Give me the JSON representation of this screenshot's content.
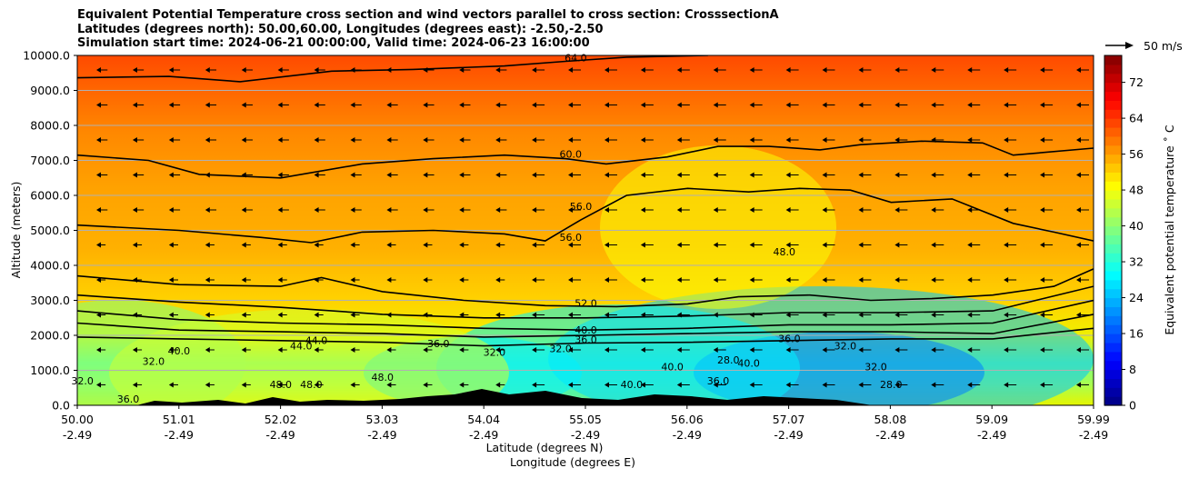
{
  "chart_data": {
    "type": "contour",
    "title_lines": [
      "Equivalent Potential Temperature cross section and wind vectors parallel to cross section: CrosssectionA",
      "Latitudes (degrees north): 50.00,60.00, Longitudes (degrees east): -2.50,-2.50",
      "Simulation start time: 2024-06-21 00:00:00, Valid time: 2024-06-23 16:00:00"
    ],
    "ylabel": "Altitude (meters)",
    "xlabel_lat": "Latitude (degrees N)",
    "xlabel_lon": "Longitude (degrees E)",
    "ylim": [
      0,
      10000
    ],
    "xlim": [
      50.0,
      59.99
    ],
    "y_ticks": [
      "0.0",
      "1000.0",
      "2000.0",
      "3000.0",
      "4000.0",
      "5000.0",
      "6000.0",
      "7000.0",
      "8000.0",
      "9000.0",
      "10000.0"
    ],
    "y_tick_values": [
      0,
      1000,
      2000,
      3000,
      4000,
      5000,
      6000,
      7000,
      8000,
      9000,
      10000
    ],
    "x_ticks": [
      {
        "lat": "50.00",
        "lon": "-2.49"
      },
      {
        "lat": "51.01",
        "lon": "-2.49"
      },
      {
        "lat": "52.02",
        "lon": "-2.49"
      },
      {
        "lat": "53.03",
        "lon": "-2.49"
      },
      {
        "lat": "54.04",
        "lon": "-2.49"
      },
      {
        "lat": "55.05",
        "lon": "-2.49"
      },
      {
        "lat": "56.06",
        "lon": "-2.49"
      },
      {
        "lat": "57.07",
        "lon": "-2.49"
      },
      {
        "lat": "58.08",
        "lon": "-2.49"
      },
      {
        "lat": "59.09",
        "lon": "-2.49"
      },
      {
        "lat": "59.99",
        "lon": "-2.49"
      }
    ],
    "colorbar": {
      "label": "Equivalent potential temperature ˚ C",
      "ticks": [
        "0",
        "8",
        "16",
        "24",
        "32",
        "40",
        "48",
        "56",
        "64",
        "72"
      ],
      "tick_values": [
        0,
        8,
        16,
        24,
        32,
        40,
        48,
        56,
        64,
        72
      ],
      "range": [
        0,
        78
      ],
      "colormap": "jet"
    },
    "quiver_key": "50 m/s",
    "contour_labels": [
      {
        "text": "64.0",
        "lat": 54.9,
        "z": 9830
      },
      {
        "text": "60.0",
        "lat": 54.85,
        "z": 7080
      },
      {
        "text": "56.0",
        "lat": 54.95,
        "z": 5580
      },
      {
        "text": "56.0",
        "lat": 54.85,
        "z": 4700
      },
      {
        "text": "52.0",
        "lat": 55.0,
        "z": 2820
      },
      {
        "text": "48.0",
        "lat": 56.95,
        "z": 4280
      },
      {
        "text": "40.0",
        "lat": 55.0,
        "z": 2050
      },
      {
        "text": "36.0",
        "lat": 55.0,
        "z": 1780
      },
      {
        "text": "32.0",
        "lat": 54.1,
        "z": 1420
      },
      {
        "text": "32.0",
        "lat": 54.75,
        "z": 1520
      },
      {
        "text": "44.0",
        "lat": 52.2,
        "z": 1600
      },
      {
        "text": "44.0",
        "lat": 52.35,
        "z": 1750
      },
      {
        "text": "48.0",
        "lat": 53.0,
        "z": 700
      },
      {
        "text": "48.0",
        "lat": 52.3,
        "z": 500
      },
      {
        "text": "48.0",
        "lat": 52.0,
        "z": 500
      },
      {
        "text": "40.0",
        "lat": 51.0,
        "z": 1450
      },
      {
        "text": "32.0",
        "lat": 50.75,
        "z": 1150
      },
      {
        "text": "32.0",
        "lat": 50.05,
        "z": 600
      },
      {
        "text": "36.0",
        "lat": 50.5,
        "z": 80
      },
      {
        "text": "36.0",
        "lat": 53.55,
        "z": 1660
      },
      {
        "text": "40.0",
        "lat": 55.45,
        "z": 500
      },
      {
        "text": "40.0",
        "lat": 55.85,
        "z": 1000
      },
      {
        "text": "36.0",
        "lat": 57.0,
        "z": 1800
      },
      {
        "text": "32.0",
        "lat": 57.55,
        "z": 1600
      },
      {
        "text": "32.0",
        "lat": 57.85,
        "z": 1000
      },
      {
        "text": "28.0",
        "lat": 58.0,
        "z": 500
      },
      {
        "text": "28.0",
        "lat": 56.4,
        "z": 1200
      },
      {
        "text": "36.0",
        "lat": 56.3,
        "z": 600
      },
      {
        "text": "40.0",
        "lat": 56.6,
        "z": 1100
      }
    ],
    "contour_lines": [
      {
        "level": 64,
        "points": [
          [
            50.0,
            9360
          ],
          [
            50.9,
            9400
          ],
          [
            51.6,
            9250
          ],
          [
            52.5,
            9550
          ],
          [
            53.3,
            9600
          ],
          [
            54.2,
            9700
          ],
          [
            54.8,
            9830
          ],
          [
            55.4,
            9950
          ],
          [
            56.2,
            10000
          ]
        ]
      },
      {
        "level": 60,
        "points": [
          [
            50.0,
            7150
          ],
          [
            50.7,
            7000
          ],
          [
            51.2,
            6600
          ],
          [
            52.0,
            6500
          ],
          [
            52.8,
            6900
          ],
          [
            53.5,
            7050
          ],
          [
            54.2,
            7150
          ],
          [
            54.8,
            7050
          ],
          [
            55.2,
            6900
          ],
          [
            55.8,
            7100
          ],
          [
            56.3,
            7400
          ],
          [
            56.8,
            7400
          ],
          [
            57.3,
            7300
          ],
          [
            57.7,
            7450
          ],
          [
            58.3,
            7550
          ],
          [
            58.9,
            7500
          ],
          [
            59.2,
            7150
          ],
          [
            59.99,
            7350
          ]
        ]
      },
      {
        "level": 56,
        "points": [
          [
            50.0,
            5150
          ],
          [
            51.0,
            5000
          ],
          [
            51.8,
            4800
          ],
          [
            52.3,
            4650
          ],
          [
            52.8,
            4950
          ],
          [
            53.5,
            5000
          ],
          [
            54.2,
            4900
          ],
          [
            54.6,
            4700
          ],
          [
            54.95,
            5300
          ],
          [
            55.4,
            6000
          ],
          [
            56.0,
            6200
          ],
          [
            56.6,
            6100
          ],
          [
            57.1,
            6200
          ],
          [
            57.6,
            6150
          ],
          [
            58.0,
            5800
          ],
          [
            58.6,
            5900
          ],
          [
            59.2,
            5200
          ],
          [
            59.6,
            4950
          ],
          [
            59.99,
            4700
          ]
        ]
      },
      {
        "level": 52,
        "points": [
          [
            50.0,
            3700
          ],
          [
            51.0,
            3450
          ],
          [
            52.0,
            3400
          ],
          [
            52.4,
            3650
          ],
          [
            53.0,
            3250
          ],
          [
            53.8,
            3000
          ],
          [
            54.6,
            2850
          ],
          [
            55.3,
            2820
          ],
          [
            56.0,
            2900
          ],
          [
            56.5,
            3100
          ],
          [
            57.2,
            3150
          ],
          [
            57.8,
            3000
          ],
          [
            58.4,
            3050
          ],
          [
            59.0,
            3150
          ],
          [
            59.6,
            3400
          ],
          [
            59.99,
            3900
          ]
        ]
      },
      {
        "level": 48,
        "points": [
          [
            50.0,
            3150
          ],
          [
            51.0,
            2950
          ],
          [
            52.0,
            2800
          ],
          [
            53.0,
            2600
          ],
          [
            54.0,
            2500
          ],
          [
            55.0,
            2500
          ],
          [
            56.0,
            2550
          ],
          [
            57.0,
            2650
          ],
          [
            58.0,
            2650
          ],
          [
            59.0,
            2700
          ],
          [
            59.99,
            3400
          ]
        ]
      },
      {
        "level": 44,
        "points": [
          [
            50.0,
            2700
          ],
          [
            51.0,
            2450
          ],
          [
            52.0,
            2350
          ],
          [
            53.0,
            2300
          ],
          [
            54.0,
            2200
          ],
          [
            55.0,
            2150
          ],
          [
            56.0,
            2200
          ],
          [
            57.0,
            2300
          ],
          [
            58.0,
            2300
          ],
          [
            59.0,
            2350
          ],
          [
            59.99,
            3000
          ]
        ]
      },
      {
        "level": 40,
        "points": [
          [
            50.0,
            2350
          ],
          [
            51.0,
            2150
          ],
          [
            52.0,
            2100
          ],
          [
            53.0,
            2050
          ],
          [
            54.0,
            1950
          ],
          [
            55.0,
            2000
          ],
          [
            56.0,
            2050
          ],
          [
            57.0,
            2100
          ],
          [
            58.0,
            2100
          ],
          [
            59.0,
            2050
          ],
          [
            59.99,
            2600
          ]
        ]
      },
      {
        "level": 36,
        "points": [
          [
            50.0,
            1950
          ],
          [
            51.0,
            1900
          ],
          [
            52.0,
            1850
          ],
          [
            53.0,
            1800
          ],
          [
            54.0,
            1700
          ],
          [
            55.0,
            1780
          ],
          [
            56.0,
            1800
          ],
          [
            57.0,
            1850
          ],
          [
            58.0,
            1900
          ],
          [
            59.0,
            1900
          ],
          [
            59.99,
            2200
          ]
        ]
      }
    ]
  }
}
